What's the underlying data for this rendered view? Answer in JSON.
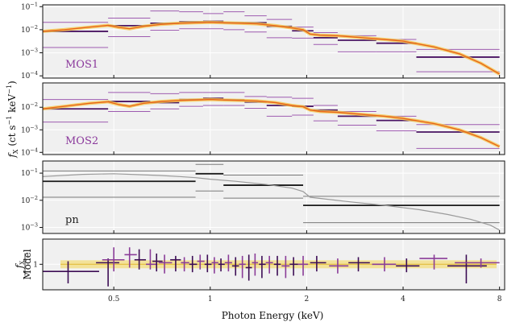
{
  "chart_data": {
    "type": "line",
    "xlabel": "Photon Energy (keV)",
    "x_scale": "log",
    "xlim": [
      0.3,
      8.3
    ],
    "x_ticks": [
      {
        "value": 0.5,
        "label": "0.5"
      },
      {
        "value": 1,
        "label": "1"
      },
      {
        "value": 2,
        "label": "2"
      },
      {
        "value": 4,
        "label": "4"
      },
      {
        "value": 8,
        "label": "8"
      }
    ],
    "shared_ylabel": {
      "main": "f",
      "sub": "X",
      "rest": " (ct s",
      "sup1": "−1",
      "mid": " keV",
      "sup2": "−1",
      "end": ")"
    },
    "panels": [
      {
        "name": "MOS1",
        "label": "MOS1",
        "label_color": "#8b3a9c",
        "y_scale": "log",
        "ylim": [
          8e-05,
          0.12
        ],
        "y_ticks": [
          {
            "value": 0.1,
            "base": "10",
            "exp": "−1"
          },
          {
            "value": 0.01,
            "base": "10",
            "exp": "−2"
          },
          {
            "value": 0.001,
            "base": "10",
            "exp": "−3"
          },
          {
            "value": 0.0001,
            "base": "10",
            "exp": "−4"
          }
        ],
        "bins": [
          {
            "lo": 0.3,
            "hi": 0.48,
            "y": 0.0085,
            "hi_y": 0.021,
            "lo_y": 0.0017
          },
          {
            "lo": 0.48,
            "hi": 0.65,
            "y": 0.015,
            "hi_y": 0.032,
            "lo_y": 0.005
          },
          {
            "lo": 0.65,
            "hi": 0.8,
            "y": 0.019,
            "hi_y": 0.065,
            "lo_y": 0.0095
          },
          {
            "lo": 0.8,
            "hi": 0.95,
            "y": 0.022,
            "hi_y": 0.06,
            "lo_y": 0.011
          },
          {
            "lo": 0.95,
            "hi": 1.1,
            "y": 0.023,
            "hi_y": 0.05,
            "lo_y": 0.011
          },
          {
            "lo": 1.1,
            "hi": 1.28,
            "y": 0.02,
            "hi_y": 0.06,
            "lo_y": 0.01
          },
          {
            "lo": 1.28,
            "hi": 1.5,
            "y": 0.02,
            "hi_y": 0.04,
            "lo_y": 0.008
          },
          {
            "lo": 1.5,
            "hi": 1.8,
            "y": 0.014,
            "hi_y": 0.028,
            "lo_y": 0.0045
          },
          {
            "lo": 1.8,
            "hi": 2.1,
            "y": 0.009,
            "hi_y": 0.013,
            "lo_y": 0.0043
          },
          {
            "lo": 2.1,
            "hi": 2.5,
            "y": 0.0045,
            "hi_y": 0.0075,
            "lo_y": 0.0023
          },
          {
            "lo": 2.5,
            "hi": 3.3,
            "y": 0.0035,
            "hi_y": 0.0055,
            "lo_y": 0.0011
          },
          {
            "lo": 3.3,
            "hi": 4.4,
            "y": 0.0026,
            "hi_y": 0.0038,
            "lo_y": 0.0011
          },
          {
            "lo": 4.4,
            "hi": 8.0,
            "y": 0.00065,
            "hi_y": 0.0014,
            "lo_y": 0.00015
          }
        ]
      },
      {
        "name": "MOS2",
        "label": "MOS2",
        "label_color": "#8b3a9c",
        "y_scale": "log",
        "ylim": [
          8e-05,
          0.12
        ],
        "y_ticks": [
          {
            "value": 0.01,
            "base": "10",
            "exp": "−2"
          },
          {
            "value": 0.001,
            "base": "10",
            "exp": "−3"
          },
          {
            "value": 0.0001,
            "base": "10",
            "exp": "−4"
          }
        ],
        "bins": [
          {
            "lo": 0.3,
            "hi": 0.48,
            "y": 0.0085,
            "hi_y": 0.022,
            "lo_y": 0.0022
          },
          {
            "lo": 0.48,
            "hi": 0.65,
            "y": 0.018,
            "hi_y": 0.045,
            "lo_y": 0.0065
          },
          {
            "lo": 0.65,
            "hi": 0.8,
            "y": 0.016,
            "hi_y": 0.04,
            "lo_y": 0.0085
          },
          {
            "lo": 0.8,
            "hi": 0.95,
            "y": 0.022,
            "hi_y": 0.045,
            "lo_y": 0.011
          },
          {
            "lo": 0.95,
            "hi": 1.1,
            "y": 0.025,
            "hi_y": 0.045,
            "lo_y": 0.012
          },
          {
            "lo": 1.1,
            "hi": 1.28,
            "y": 0.021,
            "hi_y": 0.045,
            "lo_y": 0.012
          },
          {
            "lo": 1.28,
            "hi": 1.5,
            "y": 0.017,
            "hi_y": 0.03,
            "lo_y": 0.009
          },
          {
            "lo": 1.5,
            "hi": 1.8,
            "y": 0.012,
            "hi_y": 0.028,
            "lo_y": 0.004
          },
          {
            "lo": 1.8,
            "hi": 2.1,
            "y": 0.011,
            "hi_y": 0.025,
            "lo_y": 0.0045
          },
          {
            "lo": 2.1,
            "hi": 2.5,
            "y": 0.0075,
            "hi_y": 0.012,
            "lo_y": 0.0025
          },
          {
            "lo": 2.5,
            "hi": 3.3,
            "y": 0.004,
            "hi_y": 0.0065,
            "lo_y": 0.0016
          },
          {
            "lo": 3.3,
            "hi": 4.4,
            "y": 0.0026,
            "hi_y": 0.004,
            "lo_y": 0.0009
          },
          {
            "lo": 4.4,
            "hi": 8.0,
            "y": 0.0008,
            "hi_y": 0.0017,
            "lo_y": 0.00015
          }
        ]
      },
      {
        "name": "pn",
        "label": "pn",
        "label_color": "#222222",
        "y_scale": "log",
        "ylim": [
          0.0006,
          0.28
        ],
        "y_ticks": [
          {
            "value": 0.1,
            "base": "10",
            "exp": "−1"
          },
          {
            "value": 0.01,
            "base": "10",
            "exp": "−2"
          },
          {
            "value": 0.001,
            "base": "10",
            "exp": "−3"
          }
        ],
        "bins": [
          {
            "lo": 0.3,
            "hi": 0.9,
            "y": 0.05,
            "hi_y": 0.12,
            "lo_y": 0.013
          },
          {
            "lo": 0.9,
            "hi": 1.1,
            "y": 0.095,
            "hi_y": 0.21,
            "lo_y": 0.022
          },
          {
            "lo": 1.1,
            "hi": 1.95,
            "y": 0.036,
            "hi_y": 0.085,
            "lo_y": 0.012
          },
          {
            "lo": 1.95,
            "hi": 8.0,
            "y": 0.0065,
            "hi_y": 0.014,
            "lo_y": 0.0015
          }
        ]
      },
      {
        "name": "ratio",
        "label": "",
        "label_color": "#222222",
        "y_scale": "log",
        "ylim": [
          0.45,
          2.2
        ],
        "y_ticks": [
          {
            "value": 1,
            "base": "1",
            "exp": ""
          }
        ],
        "ylabel": {
          "top": "f",
          "top_sub": "X",
          "bottom": "Model"
        }
      }
    ],
    "model_mos1": [
      [
        0.3,
        0.0085
      ],
      [
        0.35,
        0.01
      ],
      [
        0.42,
        0.013
      ],
      [
        0.48,
        0.0155
      ],
      [
        0.52,
        0.0125
      ],
      [
        0.56,
        0.011
      ],
      [
        0.62,
        0.014
      ],
      [
        0.7,
        0.017
      ],
      [
        0.8,
        0.019
      ],
      [
        0.9,
        0.02
      ],
      [
        1.0,
        0.021
      ],
      [
        1.1,
        0.02
      ],
      [
        1.25,
        0.019
      ],
      [
        1.4,
        0.018
      ],
      [
        1.6,
        0.015
      ],
      [
        1.8,
        0.012
      ],
      [
        1.95,
        0.01
      ],
      [
        2.05,
        0.0065
      ],
      [
        2.2,
        0.0058
      ],
      [
        2.5,
        0.0055
      ],
      [
        3.0,
        0.0045
      ],
      [
        3.5,
        0.0038
      ],
      [
        4.0,
        0.0032
      ],
      [
        5.0,
        0.0018
      ],
      [
        6.0,
        0.0009
      ],
      [
        7.0,
        0.00035
      ],
      [
        8.0,
        0.00012
      ]
    ],
    "model_mos2": [
      [
        0.3,
        0.0085
      ],
      [
        0.35,
        0.011
      ],
      [
        0.42,
        0.015
      ],
      [
        0.48,
        0.0175
      ],
      [
        0.52,
        0.013
      ],
      [
        0.56,
        0.011
      ],
      [
        0.62,
        0.015
      ],
      [
        0.7,
        0.018
      ],
      [
        0.8,
        0.02
      ],
      [
        0.9,
        0.021
      ],
      [
        1.0,
        0.022
      ],
      [
        1.1,
        0.021
      ],
      [
        1.25,
        0.02
      ],
      [
        1.4,
        0.019
      ],
      [
        1.6,
        0.016
      ],
      [
        1.8,
        0.012
      ],
      [
        1.95,
        0.0105
      ],
      [
        2.05,
        0.0075
      ],
      [
        2.2,
        0.0065
      ],
      [
        2.5,
        0.006
      ],
      [
        3.0,
        0.0048
      ],
      [
        3.5,
        0.004
      ],
      [
        4.0,
        0.0032
      ],
      [
        5.0,
        0.0019
      ],
      [
        6.0,
        0.001
      ],
      [
        7.0,
        0.00045
      ],
      [
        8.0,
        0.00018
      ]
    ],
    "model_pn": [
      [
        0.3,
        0.075
      ],
      [
        0.4,
        0.09
      ],
      [
        0.5,
        0.095
      ],
      [
        0.6,
        0.088
      ],
      [
        0.7,
        0.082
      ],
      [
        0.8,
        0.075
      ],
      [
        0.9,
        0.068
      ],
      [
        1.0,
        0.06
      ],
      [
        1.2,
        0.05
      ],
      [
        1.5,
        0.038
      ],
      [
        1.8,
        0.028
      ],
      [
        1.95,
        0.021
      ],
      [
        2.05,
        0.013
      ],
      [
        2.3,
        0.011
      ],
      [
        2.8,
        0.0085
      ],
      [
        3.5,
        0.0065
      ],
      [
        4.5,
        0.0045
      ],
      [
        5.5,
        0.003
      ],
      [
        6.5,
        0.002
      ],
      [
        7.5,
        0.0012
      ],
      [
        8.0,
        0.0008
      ]
    ],
    "ratio_points": [
      {
        "x": 0.36,
        "xlo": 0.3,
        "xhi": 0.45,
        "y": 0.8,
        "ylo": 0.55,
        "yhi": 1.1,
        "s": 0
      },
      {
        "x": 0.48,
        "xlo": 0.44,
        "xhi": 0.52,
        "y": 1.05,
        "ylo": 0.5,
        "yhi": 1.2,
        "s": 0
      },
      {
        "x": 0.5,
        "xlo": 0.46,
        "xhi": 0.54,
        "y": 1.15,
        "ylo": 0.8,
        "yhi": 1.7,
        "s": 1
      },
      {
        "x": 0.56,
        "xlo": 0.54,
        "xhi": 0.59,
        "y": 1.35,
        "ylo": 0.9,
        "yhi": 1.7,
        "s": 1
      },
      {
        "x": 0.6,
        "xlo": 0.58,
        "xhi": 0.63,
        "y": 1.15,
        "ylo": 0.85,
        "yhi": 1.6,
        "s": 0
      },
      {
        "x": 0.65,
        "xlo": 0.63,
        "xhi": 0.68,
        "y": 1.0,
        "ylo": 0.85,
        "yhi": 1.6,
        "s": 1
      },
      {
        "x": 0.68,
        "xlo": 0.66,
        "xhi": 0.71,
        "y": 1.1,
        "ylo": 0.8,
        "yhi": 1.4,
        "s": 0
      },
      {
        "x": 0.72,
        "xlo": 0.69,
        "xhi": 0.76,
        "y": 1.05,
        "ylo": 0.75,
        "yhi": 1.35,
        "s": 1
      },
      {
        "x": 0.78,
        "xlo": 0.75,
        "xhi": 0.81,
        "y": 1.15,
        "ylo": 0.8,
        "yhi": 1.3,
        "s": 0
      },
      {
        "x": 0.83,
        "xlo": 0.81,
        "xhi": 0.86,
        "y": 1.05,
        "ylo": 0.8,
        "yhi": 1.25,
        "s": 1
      },
      {
        "x": 0.88,
        "xlo": 0.86,
        "xhi": 0.91,
        "y": 1.0,
        "ylo": 0.78,
        "yhi": 1.3,
        "s": 0
      },
      {
        "x": 0.93,
        "xlo": 0.91,
        "xhi": 0.96,
        "y": 1.1,
        "ylo": 0.85,
        "yhi": 1.35,
        "s": 1
      },
      {
        "x": 0.98,
        "xlo": 0.96,
        "xhi": 1.01,
        "y": 1.0,
        "ylo": 0.78,
        "yhi": 1.35,
        "s": 0
      },
      {
        "x": 1.03,
        "xlo": 1.01,
        "xhi": 1.06,
        "y": 1.05,
        "ylo": 0.75,
        "yhi": 1.25,
        "s": 1
      },
      {
        "x": 1.08,
        "xlo": 1.06,
        "xhi": 1.11,
        "y": 1.0,
        "ylo": 0.8,
        "yhi": 1.2,
        "s": 0
      },
      {
        "x": 1.14,
        "xlo": 1.11,
        "xhi": 1.17,
        "y": 1.05,
        "ylo": 0.8,
        "yhi": 1.35,
        "s": 1
      },
      {
        "x": 1.2,
        "xlo": 1.17,
        "xhi": 1.23,
        "y": 0.95,
        "ylo": 0.7,
        "yhi": 1.25,
        "s": 0
      },
      {
        "x": 1.26,
        "xlo": 1.23,
        "xhi": 1.29,
        "y": 1.0,
        "ylo": 0.65,
        "yhi": 1.3,
        "s": 1
      },
      {
        "x": 1.32,
        "xlo": 1.29,
        "xhi": 1.35,
        "y": 0.9,
        "ylo": 0.6,
        "yhi": 1.35,
        "s": 0
      },
      {
        "x": 1.38,
        "xlo": 1.35,
        "xhi": 1.41,
        "y": 1.05,
        "ylo": 0.7,
        "yhi": 1.4,
        "s": 1
      },
      {
        "x": 1.45,
        "xlo": 1.42,
        "xhi": 1.49,
        "y": 1.0,
        "ylo": 0.65,
        "yhi": 1.3,
        "s": 0
      },
      {
        "x": 1.53,
        "xlo": 1.49,
        "xhi": 1.57,
        "y": 1.05,
        "ylo": 0.75,
        "yhi": 1.3,
        "s": 1
      },
      {
        "x": 1.62,
        "xlo": 1.58,
        "xhi": 1.66,
        "y": 1.0,
        "ylo": 0.7,
        "yhi": 1.3,
        "s": 0
      },
      {
        "x": 1.72,
        "xlo": 1.67,
        "xhi": 1.77,
        "y": 0.95,
        "ylo": 0.65,
        "yhi": 1.3,
        "s": 1
      },
      {
        "x": 1.82,
        "xlo": 1.77,
        "xhi": 1.88,
        "y": 1.0,
        "ylo": 0.7,
        "yhi": 1.25,
        "s": 0
      },
      {
        "x": 1.95,
        "xlo": 1.88,
        "xhi": 2.02,
        "y": 1.0,
        "ylo": 0.7,
        "yhi": 1.3,
        "s": 1
      },
      {
        "x": 2.15,
        "xlo": 2.05,
        "xhi": 2.3,
        "y": 1.05,
        "ylo": 0.8,
        "yhi": 1.3,
        "s": 0
      },
      {
        "x": 2.5,
        "xlo": 2.35,
        "xhi": 2.7,
        "y": 0.95,
        "ylo": 0.75,
        "yhi": 1.2,
        "s": 1
      },
      {
        "x": 2.9,
        "xlo": 2.7,
        "xhi": 3.15,
        "y": 1.05,
        "ylo": 0.8,
        "yhi": 1.25,
        "s": 0
      },
      {
        "x": 3.5,
        "xlo": 3.2,
        "xhi": 3.8,
        "y": 1.0,
        "ylo": 0.8,
        "yhi": 1.25,
        "s": 1
      },
      {
        "x": 4.1,
        "xlo": 3.8,
        "xhi": 4.5,
        "y": 0.95,
        "ylo": 0.78,
        "yhi": 1.2,
        "s": 0
      },
      {
        "x": 5.0,
        "xlo": 4.5,
        "xhi": 5.5,
        "y": 1.2,
        "ylo": 0.85,
        "yhi": 1.35,
        "s": 1
      },
      {
        "x": 6.3,
        "xlo": 5.5,
        "xhi": 7.3,
        "y": 0.95,
        "ylo": 0.55,
        "yhi": 1.35,
        "s": 0
      },
      {
        "x": 7.0,
        "xlo": 5.8,
        "xhi": 8.0,
        "y": 1.05,
        "ylo": 0.9,
        "yhi": 1.2,
        "s": 1
      }
    ]
  },
  "colors": {
    "mos_dark": "#4a1463",
    "mos_light": "#9e5bb0",
    "model": "#e8641c",
    "model_band": "#f5c84c",
    "pn_dark": "#1a1a1a",
    "pn_light": "#7a7a7a",
    "pn_model": "#9a9a9a",
    "ratio_dark": "#3c0d55",
    "ratio_light": "#8a3c98",
    "ratio_band": "#f3df8a",
    "panel_bg": "#f0f0f0",
    "grid": "#ffffff"
  }
}
